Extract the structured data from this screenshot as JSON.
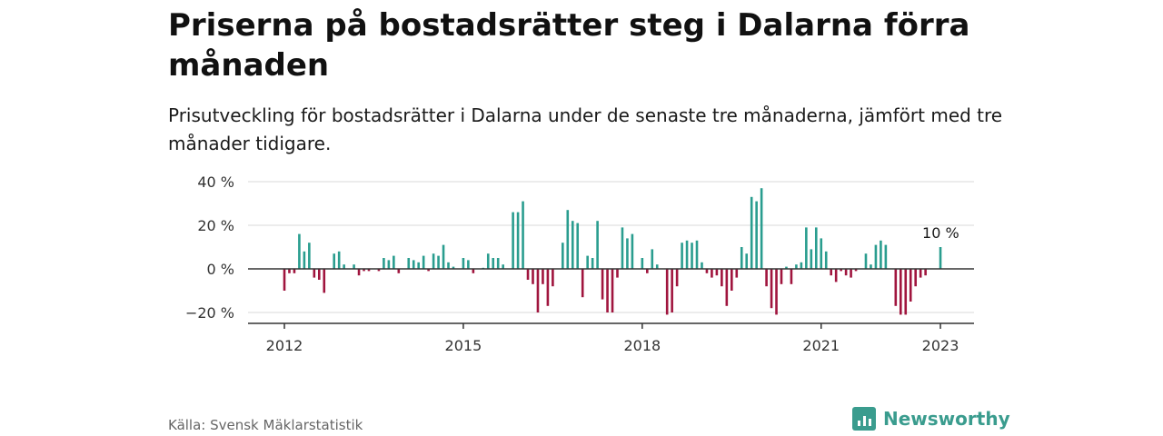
{
  "title": "Priserna på bostadsrätter steg i Dalarna förra månaden",
  "subtitle": "Prisutveckling för bostadsrätter i Dalarna under de senaste tre månaderna, jämfört med tre månader tidigare.",
  "source": "Källa: Svensk Mäklarstatistik",
  "brand": {
    "name": "Newsworthy",
    "icon": "newsworthy-logo-icon"
  },
  "colors": {
    "positive": "#2a9d8f",
    "negative": "#a0153e",
    "grid": "#d9d9d9",
    "axis": "#333333",
    "brand": "#3a9c8e"
  },
  "chart_data": {
    "type": "bar",
    "unit": "%",
    "y_ticks": [
      {
        "value": 40,
        "label": "40 %"
      },
      {
        "value": 20,
        "label": "20 %"
      },
      {
        "value": 0,
        "label": "0 %"
      },
      {
        "value": -20,
        "label": "−20 %"
      }
    ],
    "x_ticks": [
      "2012",
      "2015",
      "2018",
      "2021",
      "2023"
    ],
    "ylim": [
      -25,
      42
    ],
    "grid": true,
    "annotation": {
      "text": "10 %",
      "date": "2023-01"
    },
    "series": [
      {
        "values": [
          [
            "2012-01",
            -10
          ],
          [
            "2012-02",
            -2
          ],
          [
            "2012-03",
            -2
          ],
          [
            "2012-04",
            16
          ],
          [
            "2012-05",
            8
          ],
          [
            "2012-06",
            12
          ],
          [
            "2012-07",
            -4
          ],
          [
            "2012-08",
            -5
          ],
          [
            "2012-09",
            -11
          ],
          [
            "2012-11",
            7
          ],
          [
            "2012-12",
            8
          ],
          [
            "2013-01",
            2
          ],
          [
            "2013-03",
            2
          ],
          [
            "2013-04",
            -3
          ],
          [
            "2013-05",
            -1
          ],
          [
            "2013-06",
            -1
          ],
          [
            "2013-08",
            -1
          ],
          [
            "2013-09",
            5
          ],
          [
            "2013-10",
            4
          ],
          [
            "2013-11",
            6
          ],
          [
            "2013-12",
            -2
          ],
          [
            "2014-02",
            5
          ],
          [
            "2014-03",
            4
          ],
          [
            "2014-04",
            3
          ],
          [
            "2014-05",
            6
          ],
          [
            "2014-06",
            -1
          ],
          [
            "2014-07",
            7
          ],
          [
            "2014-08",
            6
          ],
          [
            "2014-09",
            11
          ],
          [
            "2014-10",
            3
          ],
          [
            "2014-11",
            1
          ],
          [
            "2015-01",
            5
          ],
          [
            "2015-02",
            4
          ],
          [
            "2015-03",
            -2
          ],
          [
            "2015-05",
            0.5
          ],
          [
            "2015-06",
            7
          ],
          [
            "2015-07",
            5
          ],
          [
            "2015-08",
            5
          ],
          [
            "2015-09",
            2
          ],
          [
            "2015-11",
            26
          ],
          [
            "2015-12",
            26
          ],
          [
            "2016-01",
            31
          ],
          [
            "2016-02",
            -5
          ],
          [
            "2016-03",
            -7
          ],
          [
            "2016-04",
            -20
          ],
          [
            "2016-05",
            -7
          ],
          [
            "2016-06",
            -17
          ],
          [
            "2016-07",
            -8
          ],
          [
            "2016-09",
            12
          ],
          [
            "2016-10",
            27
          ],
          [
            "2016-11",
            22
          ],
          [
            "2016-12",
            21
          ],
          [
            "2017-01",
            -13
          ],
          [
            "2017-02",
            6
          ],
          [
            "2017-03",
            5
          ],
          [
            "2017-04",
            22
          ],
          [
            "2017-05",
            -14
          ],
          [
            "2017-06",
            -20
          ],
          [
            "2017-07",
            -20
          ],
          [
            "2017-08",
            -4
          ],
          [
            "2017-09",
            19
          ],
          [
            "2017-10",
            14
          ],
          [
            "2017-11",
            16
          ],
          [
            "2018-01",
            5
          ],
          [
            "2018-02",
            -2
          ],
          [
            "2018-03",
            9
          ],
          [
            "2018-04",
            2
          ],
          [
            "2018-06",
            -21
          ],
          [
            "2018-07",
            -20
          ],
          [
            "2018-08",
            -8
          ],
          [
            "2018-09",
            12
          ],
          [
            "2018-10",
            13
          ],
          [
            "2018-11",
            12
          ],
          [
            "2018-12",
            13
          ],
          [
            "2019-01",
            3
          ],
          [
            "2019-02",
            -2
          ],
          [
            "2019-03",
            -4
          ],
          [
            "2019-04",
            -3
          ],
          [
            "2019-05",
            -8
          ],
          [
            "2019-06",
            -17
          ],
          [
            "2019-07",
            -10
          ],
          [
            "2019-08",
            -4
          ],
          [
            "2019-09",
            10
          ],
          [
            "2019-10",
            7
          ],
          [
            "2019-11",
            33
          ],
          [
            "2019-12",
            31
          ],
          [
            "2020-01",
            37
          ],
          [
            "2020-02",
            -8
          ],
          [
            "2020-03",
            -18
          ],
          [
            "2020-04",
            -21
          ],
          [
            "2020-05",
            -7
          ],
          [
            "2020-06",
            1
          ],
          [
            "2020-07",
            -7
          ],
          [
            "2020-08",
            2
          ],
          [
            "2020-09",
            3
          ],
          [
            "2020-10",
            19
          ],
          [
            "2020-11",
            9
          ],
          [
            "2020-12",
            19
          ],
          [
            "2021-01",
            14
          ],
          [
            "2021-02",
            8
          ],
          [
            "2021-03",
            -3
          ],
          [
            "2021-04",
            -6
          ],
          [
            "2021-05",
            -1
          ],
          [
            "2021-06",
            -3
          ],
          [
            "2021-07",
            -4
          ],
          [
            "2021-08",
            -1
          ],
          [
            "2021-10",
            7
          ],
          [
            "2021-11",
            2
          ],
          [
            "2021-12",
            11
          ],
          [
            "2022-01",
            13
          ],
          [
            "2022-02",
            11
          ],
          [
            "2022-04",
            -17
          ],
          [
            "2022-05",
            -21
          ],
          [
            "2022-06",
            -21
          ],
          [
            "2022-07",
            -15
          ],
          [
            "2022-08",
            -8
          ],
          [
            "2022-09",
            -4
          ],
          [
            "2022-10",
            -3
          ],
          [
            "2023-01",
            10
          ]
        ]
      }
    ]
  }
}
